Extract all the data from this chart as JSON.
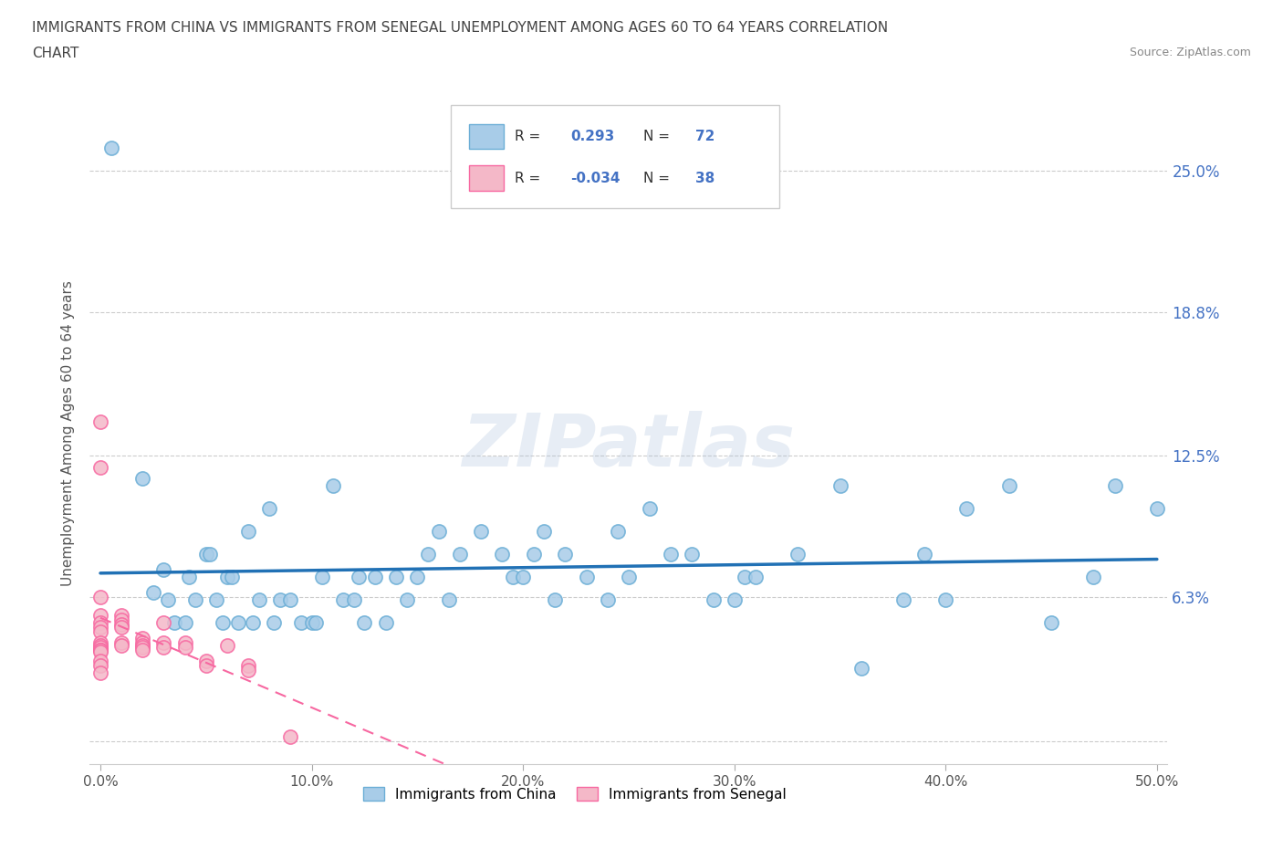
{
  "title_line1": "IMMIGRANTS FROM CHINA VS IMMIGRANTS FROM SENEGAL UNEMPLOYMENT AMONG AGES 60 TO 64 YEARS CORRELATION",
  "title_line2": "CHART",
  "source": "Source: ZipAtlas.com",
  "ylabel": "Unemployment Among Ages 60 to 64 years",
  "china_R": 0.293,
  "china_N": 72,
  "senegal_R": -0.034,
  "senegal_N": 38,
  "china_color": "#a8cce8",
  "senegal_color": "#f4b8c8",
  "china_edge_color": "#6baed6",
  "senegal_edge_color": "#f768a1",
  "china_line_color": "#2171b5",
  "senegal_line_color": "#f768a1",
  "watermark": "ZIPatlas",
  "xlim": [
    -0.005,
    0.505
  ],
  "ylim": [
    -0.01,
    0.28
  ],
  "yticks": [
    0.0,
    0.063,
    0.125,
    0.188,
    0.25
  ],
  "ytick_labels": [
    "",
    "6.3%",
    "12.5%",
    "18.8%",
    "25.0%"
  ],
  "xticks": [
    0.0,
    0.1,
    0.2,
    0.3,
    0.4,
    0.5
  ],
  "xtick_labels": [
    "0.0%",
    "10.0%",
    "20.0%",
    "30.0%",
    "40.0%",
    "50.0%"
  ],
  "legend_label_china": "Immigrants from China",
  "legend_label_senegal": "Immigrants from Senegal",
  "china_x": [
    0.005,
    0.02,
    0.025,
    0.03,
    0.032,
    0.035,
    0.04,
    0.042,
    0.045,
    0.05,
    0.052,
    0.055,
    0.058,
    0.06,
    0.062,
    0.065,
    0.07,
    0.072,
    0.075,
    0.08,
    0.082,
    0.085,
    0.09,
    0.095,
    0.1,
    0.102,
    0.105,
    0.11,
    0.115,
    0.12,
    0.122,
    0.125,
    0.13,
    0.135,
    0.14,
    0.145,
    0.15,
    0.155,
    0.16,
    0.165,
    0.17,
    0.18,
    0.19,
    0.195,
    0.2,
    0.205,
    0.21,
    0.215,
    0.22,
    0.23,
    0.24,
    0.245,
    0.25,
    0.26,
    0.27,
    0.28,
    0.29,
    0.3,
    0.305,
    0.31,
    0.33,
    0.35,
    0.36,
    0.38,
    0.39,
    0.4,
    0.41,
    0.43,
    0.45,
    0.47,
    0.48,
    0.5
  ],
  "china_y": [
    0.26,
    0.115,
    0.065,
    0.075,
    0.062,
    0.052,
    0.052,
    0.072,
    0.062,
    0.082,
    0.082,
    0.062,
    0.052,
    0.072,
    0.072,
    0.052,
    0.092,
    0.052,
    0.062,
    0.102,
    0.052,
    0.062,
    0.062,
    0.052,
    0.052,
    0.052,
    0.072,
    0.112,
    0.062,
    0.062,
    0.072,
    0.052,
    0.072,
    0.052,
    0.072,
    0.062,
    0.072,
    0.082,
    0.092,
    0.062,
    0.082,
    0.092,
    0.082,
    0.072,
    0.072,
    0.082,
    0.092,
    0.062,
    0.082,
    0.072,
    0.062,
    0.092,
    0.072,
    0.102,
    0.082,
    0.082,
    0.062,
    0.062,
    0.072,
    0.072,
    0.082,
    0.112,
    0.032,
    0.062,
    0.082,
    0.062,
    0.102,
    0.112,
    0.052,
    0.072,
    0.112,
    0.102
  ],
  "senegal_x": [
    0.0,
    0.0,
    0.0,
    0.0,
    0.0,
    0.0,
    0.0,
    0.0,
    0.0,
    0.0,
    0.0,
    0.0,
    0.0,
    0.0,
    0.0,
    0.0,
    0.01,
    0.01,
    0.01,
    0.01,
    0.01,
    0.01,
    0.02,
    0.02,
    0.02,
    0.02,
    0.02,
    0.03,
    0.03,
    0.03,
    0.04,
    0.04,
    0.05,
    0.05,
    0.06,
    0.07,
    0.07,
    0.09
  ],
  "senegal_y": [
    0.14,
    0.12,
    0.063,
    0.055,
    0.052,
    0.05,
    0.048,
    0.043,
    0.042,
    0.041,
    0.04,
    0.04,
    0.039,
    0.035,
    0.033,
    0.03,
    0.055,
    0.053,
    0.051,
    0.05,
    0.043,
    0.042,
    0.045,
    0.043,
    0.042,
    0.041,
    0.04,
    0.052,
    0.043,
    0.041,
    0.043,
    0.041,
    0.035,
    0.033,
    0.042,
    0.033,
    0.031,
    0.002
  ]
}
